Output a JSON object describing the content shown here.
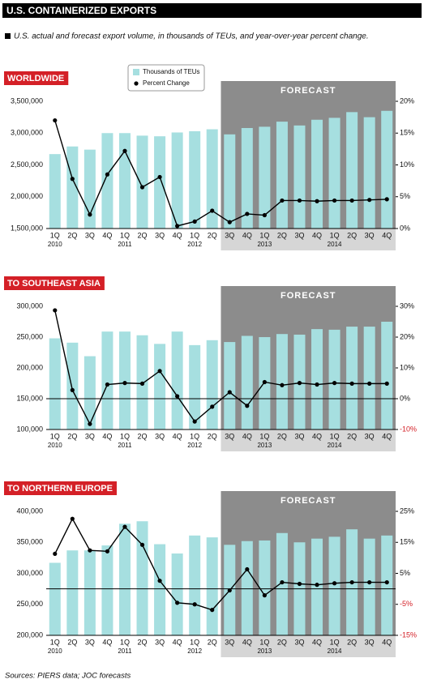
{
  "header": {
    "title": "U.S. CONTAINERIZED EXPORTS",
    "subtitle": "U.S. actual and forecast export volume, in thousands of TEUs, and year-over-year percent change."
  },
  "source": "Sources: PIERS data; JOC forecasts",
  "chart_data": [
    {
      "type": "combo",
      "title": "WORLDWIDE",
      "forecast_label": "FORECAST",
      "categories": [
        "1Q",
        "2Q",
        "3Q",
        "4Q",
        "1Q",
        "2Q",
        "3Q",
        "4Q",
        "1Q",
        "2Q",
        "3Q",
        "4Q",
        "1Q",
        "2Q",
        "3Q",
        "4Q",
        "1Q",
        "2Q",
        "3Q",
        "4Q"
      ],
      "category_groups": [
        "2010",
        null,
        null,
        null,
        "2011",
        null,
        null,
        null,
        "2012",
        null,
        null,
        null,
        "2013",
        null,
        null,
        null,
        "2014",
        null,
        null,
        null
      ],
      "forecast": [
        false,
        false,
        false,
        false,
        false,
        false,
        false,
        false,
        false,
        false,
        true,
        true,
        true,
        true,
        true,
        true,
        true,
        true,
        true,
        true
      ],
      "series": [
        {
          "name": "Thousands of TEUs",
          "type": "bar",
          "color": "#a6dfe0",
          "values": [
            2670000,
            2790000,
            2740000,
            3000000,
            3000000,
            2960000,
            2950000,
            3010000,
            3030000,
            3060000,
            2980000,
            3080000,
            3100000,
            3180000,
            3120000,
            3210000,
            3240000,
            3330000,
            3250000,
            3350000
          ]
        },
        {
          "name": "Percent Change",
          "type": "line",
          "axis": "y2",
          "color": "#000000",
          "values": [
            17,
            7.8,
            2.2,
            8.5,
            12.2,
            6.5,
            8.1,
            0.4,
            1.1,
            2.8,
            1.0,
            2.3,
            2.1,
            4.4,
            4.4,
            4.3,
            4.4,
            4.4,
            4.5,
            4.6
          ]
        }
      ],
      "ylim": [
        1500000,
        3500000
      ],
      "yticks": [
        {
          "value": 1500000,
          "label": "1,500,000"
        },
        {
          "value": 2000000,
          "label": "2,000,000"
        },
        {
          "value": 2500000,
          "label": "2,500,000"
        },
        {
          "value": 3000000,
          "label": "3,000,000"
        },
        {
          "value": 3500000,
          "label": "3,500,000"
        }
      ],
      "y2lim": [
        0,
        20
      ],
      "y2ticks": [
        {
          "value": 0,
          "label": "0%"
        },
        {
          "value": 5,
          "label": "5%"
        },
        {
          "value": 10,
          "label": "10%"
        },
        {
          "value": 15,
          "label": "15%"
        },
        {
          "value": 20,
          "label": "20%"
        }
      ],
      "zero_line": false
    },
    {
      "type": "combo",
      "title": "TO SOUTHEAST ASIA",
      "forecast_label": "FORECAST",
      "categories": [
        "1Q",
        "2Q",
        "3Q",
        "4Q",
        "1Q",
        "2Q",
        "3Q",
        "4Q",
        "1Q",
        "2Q",
        "3Q",
        "4Q",
        "1Q",
        "2Q",
        "3Q",
        "4Q",
        "1Q",
        "2Q",
        "3Q",
        "4Q"
      ],
      "category_groups": [
        "2010",
        null,
        null,
        null,
        "2011",
        null,
        null,
        null,
        "2012",
        null,
        null,
        null,
        "2013",
        null,
        null,
        null,
        "2014",
        null,
        null,
        null
      ],
      "forecast": [
        false,
        false,
        false,
        false,
        false,
        false,
        false,
        false,
        false,
        false,
        true,
        true,
        true,
        true,
        true,
        true,
        true,
        true,
        true,
        true
      ],
      "series": [
        {
          "type": "bar",
          "color": "#a6dfe0",
          "values": [
            248000,
            241000,
            219000,
            259000,
            259000,
            253000,
            239000,
            259000,
            237000,
            245000,
            242000,
            252000,
            250000,
            255000,
            254000,
            263000,
            262000,
            267000,
            267000,
            275000
          ]
        },
        {
          "type": "line",
          "axis": "y2",
          "color": "#000000",
          "values": [
            28.7,
            2.8,
            -8.2,
            4.6,
            5.1,
            4.9,
            9.0,
            0.8,
            -7.4,
            -2.6,
            2.1,
            -2.3,
            5.4,
            4.4,
            5.1,
            4.6,
            5.1,
            4.9,
            4.9,
            4.9
          ]
        }
      ],
      "ylim": [
        100000,
        300000
      ],
      "yticks": [
        {
          "value": 100000,
          "label": "100,000"
        },
        {
          "value": 150000,
          "label": "150,000"
        },
        {
          "value": 200000,
          "label": "200,000"
        },
        {
          "value": 250000,
          "label": "250,000"
        },
        {
          "value": 300000,
          "label": "300,000"
        }
      ],
      "y2lim": [
        -10,
        30
      ],
      "y2ticks": [
        {
          "value": -10,
          "label": "-10%"
        },
        {
          "value": 0,
          "label": "0%"
        },
        {
          "value": 10,
          "label": "10%"
        },
        {
          "value": 20,
          "label": "20%"
        },
        {
          "value": 30,
          "label": "30%"
        }
      ],
      "zero_line": true
    },
    {
      "type": "combo",
      "title": "TO NORTHERN EUROPE",
      "forecast_label": "FORECAST",
      "categories": [
        "1Q",
        "2Q",
        "3Q",
        "4Q",
        "1Q",
        "2Q",
        "3Q",
        "4Q",
        "1Q",
        "2Q",
        "3Q",
        "4Q",
        "1Q",
        "2Q",
        "3Q",
        "4Q",
        "1Q",
        "2Q",
        "3Q",
        "4Q"
      ],
      "category_groups": [
        "2010",
        null,
        null,
        null,
        "2011",
        null,
        null,
        null,
        "2012",
        null,
        null,
        null,
        "2013",
        null,
        null,
        null,
        "2014",
        null,
        null,
        null
      ],
      "forecast": [
        false,
        false,
        false,
        false,
        false,
        false,
        false,
        false,
        false,
        false,
        true,
        true,
        true,
        true,
        true,
        true,
        true,
        true,
        true,
        true
      ],
      "series": [
        {
          "type": "bar",
          "color": "#a6dfe0",
          "values": [
            317000,
            337000,
            337000,
            345000,
            380000,
            384000,
            347000,
            332000,
            361000,
            358000,
            346000,
            352000,
            353000,
            365000,
            350000,
            356000,
            359000,
            371000,
            356000,
            361000
          ]
        },
        {
          "type": "line",
          "axis": "y2",
          "color": "#000000",
          "values": [
            11.3,
            22.6,
            12.4,
            12.1,
            20.0,
            14.2,
            2.6,
            -4.5,
            -5.0,
            -6.8,
            -0.5,
            6.3,
            -2.1,
            2.1,
            1.6,
            1.3,
            1.8,
            2.1,
            2.1,
            2.1
          ]
        }
      ],
      "ylim": [
        200000,
        400000
      ],
      "yticks": [
        {
          "value": 200000,
          "label": "200,000"
        },
        {
          "value": 250000,
          "label": "250,000"
        },
        {
          "value": 300000,
          "label": "300,000"
        },
        {
          "value": 350000,
          "label": "350,000"
        },
        {
          "value": 400000,
          "label": "400,000"
        }
      ],
      "y2lim": [
        -15,
        25
      ],
      "y2ticks": [
        {
          "value": -15,
          "label": "-15%"
        },
        {
          "value": -5,
          "label": "-5%"
        },
        {
          "value": 5,
          "label": "5%"
        },
        {
          "value": 15,
          "label": "15%"
        },
        {
          "value": 25,
          "label": "25%"
        }
      ],
      "zero_line": true
    }
  ]
}
